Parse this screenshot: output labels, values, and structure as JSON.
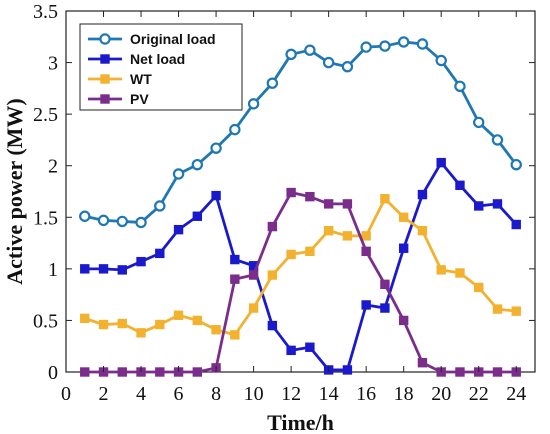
{
  "chart_data": {
    "type": "line",
    "xlabel": "Time/h",
    "ylabel": "Active power (MW)",
    "xlim": [
      0,
      25
    ],
    "ylim": [
      0,
      3.5
    ],
    "xticks": [
      0,
      2,
      4,
      6,
      8,
      10,
      12,
      14,
      16,
      18,
      20,
      22,
      24
    ],
    "yticks": [
      0,
      0.5,
      1,
      1.5,
      2,
      2.5,
      3,
      3.5
    ],
    "xtick_labels": [
      "0",
      "2",
      "4",
      "6",
      "8",
      "10",
      "12",
      "14",
      "16",
      "18",
      "20",
      "22",
      "24"
    ],
    "ytick_labels": [
      "0",
      "0.5",
      "1",
      "1.5",
      "2",
      "2.5",
      "3",
      "3.5"
    ],
    "grid": false,
    "legend_position": "top-left",
    "x": [
      1,
      2,
      3,
      4,
      5,
      6,
      7,
      8,
      9,
      10,
      11,
      12,
      13,
      14,
      15,
      16,
      17,
      18,
      19,
      20,
      21,
      22,
      23,
      24
    ],
    "series": [
      {
        "name": "Original load",
        "color": "#1f77b4",
        "marker": "circle",
        "values": [
          1.51,
          1.47,
          1.46,
          1.45,
          1.61,
          1.92,
          2.01,
          2.17,
          2.35,
          2.6,
          2.8,
          3.08,
          3.12,
          3.0,
          2.96,
          3.15,
          3.16,
          3.2,
          3.18,
          3.02,
          2.77,
          2.42,
          2.25,
          2.01
        ]
      },
      {
        "name": "Net load",
        "color": "#1a1acc",
        "marker": "square",
        "values": [
          1.0,
          1.0,
          0.99,
          1.07,
          1.15,
          1.38,
          1.51,
          1.71,
          1.09,
          1.03,
          0.45,
          0.21,
          0.24,
          0.02,
          0.02,
          0.65,
          0.62,
          1.2,
          1.72,
          2.03,
          1.81,
          1.61,
          1.63,
          1.43
        ]
      },
      {
        "name": "WT",
        "color": "#f2b230",
        "marker": "square",
        "values": [
          0.52,
          0.46,
          0.47,
          0.38,
          0.46,
          0.55,
          0.5,
          0.41,
          0.36,
          0.62,
          0.94,
          1.14,
          1.17,
          1.37,
          1.32,
          1.32,
          1.68,
          1.5,
          1.37,
          0.99,
          0.96,
          0.82,
          0.61,
          0.59
        ]
      },
      {
        "name": "PV",
        "color": "#7b2d8b",
        "marker": "square",
        "values": [
          0,
          0,
          0,
          0,
          0,
          0,
          0,
          0.04,
          0.9,
          0.94,
          1.41,
          1.74,
          1.7,
          1.63,
          1.63,
          1.17,
          0.85,
          0.5,
          0.09,
          0,
          0,
          0,
          0,
          0
        ]
      }
    ]
  }
}
